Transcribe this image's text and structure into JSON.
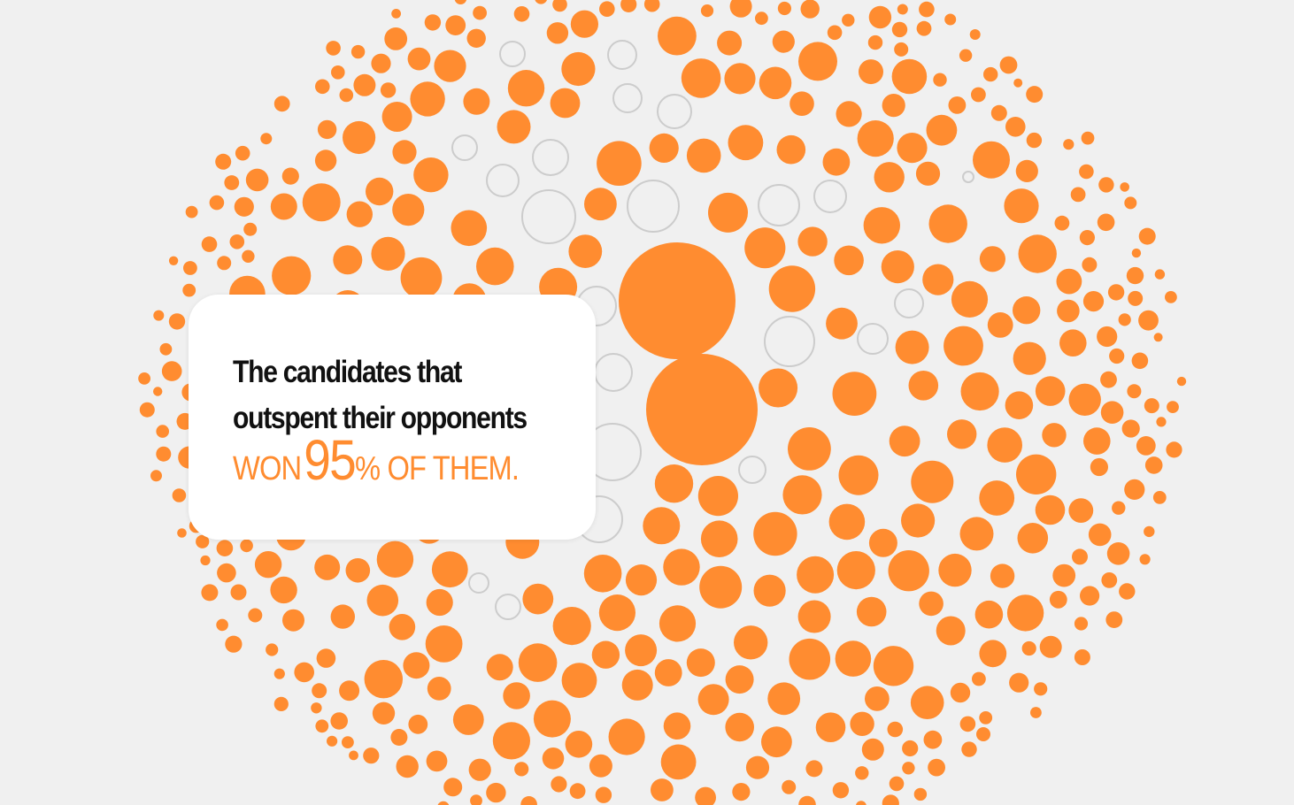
{
  "colors": {
    "background": "#f0f0f0",
    "accent": "#ff8c30",
    "hollow_stroke": "#cccccc",
    "card": "#ffffff",
    "text": "#111111"
  },
  "callout": {
    "line1": "The candidates that",
    "line2": "outspent their opponents",
    "won_label": "WON",
    "percent_value": "95",
    "suffix": "% OF THEM."
  },
  "chart_data": {
    "type": "bubble",
    "title": "",
    "percent_won": 95,
    "legend": [],
    "series": [
      {
        "status": "won",
        "style": "filled",
        "color": "#ff8c30"
      },
      {
        "status": "lost",
        "style": "outline",
        "color": "#cccccc"
      }
    ]
  }
}
